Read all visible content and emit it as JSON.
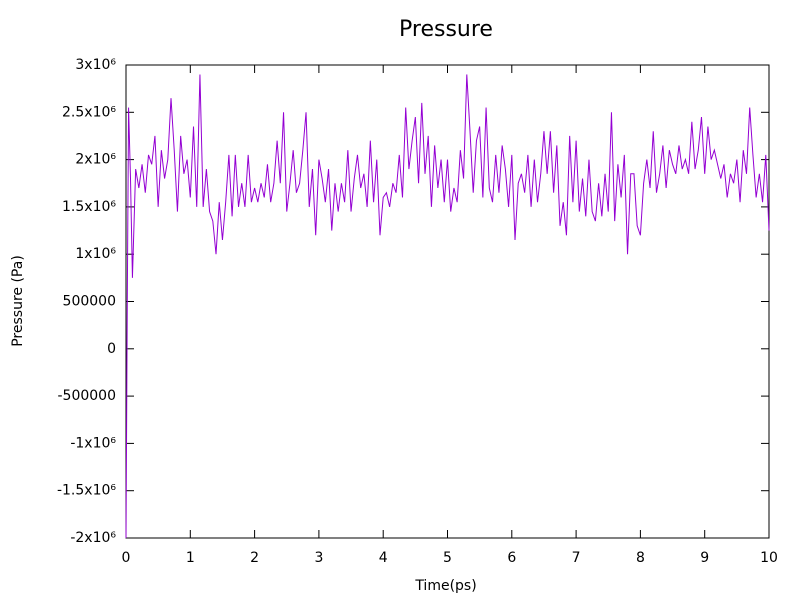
{
  "chart_data": {
    "type": "line",
    "title": "Pressure",
    "xlabel": "Time(ps)",
    "ylabel": "Pressure (Pa)",
    "color": "#9400d3",
    "x": [
      0,
      0.02,
      0.04,
      0.07,
      0.1,
      0.15,
      0.2,
      0.25,
      0.3,
      0.35,
      0.4,
      0.45,
      0.5,
      0.55,
      0.6,
      0.65,
      0.7,
      0.75,
      0.8,
      0.85,
      0.9,
      0.95,
      1.0,
      1.05,
      1.1,
      1.15,
      1.2,
      1.25,
      1.3,
      1.35,
      1.4,
      1.45,
      1.5,
      1.55,
      1.6,
      1.65,
      1.7,
      1.75,
      1.8,
      1.85,
      1.9,
      1.95,
      2.0,
      2.05,
      2.1,
      2.15,
      2.2,
      2.25,
      2.3,
      2.35,
      2.4,
      2.45,
      2.5,
      2.55,
      2.6,
      2.65,
      2.7,
      2.75,
      2.8,
      2.85,
      2.9,
      2.95,
      3.0,
      3.05,
      3.1,
      3.15,
      3.2,
      3.25,
      3.3,
      3.35,
      3.4,
      3.45,
      3.5,
      3.55,
      3.6,
      3.65,
      3.7,
      3.75,
      3.8,
      3.85,
      3.9,
      3.95,
      4.0,
      4.05,
      4.1,
      4.15,
      4.2,
      4.25,
      4.3,
      4.35,
      4.4,
      4.45,
      4.5,
      4.55,
      4.6,
      4.65,
      4.7,
      4.75,
      4.8,
      4.85,
      4.9,
      4.95,
      5.0,
      5.05,
      5.1,
      5.15,
      5.2,
      5.25,
      5.3,
      5.35,
      5.4,
      5.45,
      5.5,
      5.55,
      5.6,
      5.65,
      5.7,
      5.75,
      5.8,
      5.85,
      5.9,
      5.95,
      6.0,
      6.05,
      6.1,
      6.15,
      6.2,
      6.25,
      6.3,
      6.35,
      6.4,
      6.45,
      6.5,
      6.55,
      6.6,
      6.65,
      6.7,
      6.75,
      6.8,
      6.85,
      6.9,
      6.95,
      7.0,
      7.05,
      7.1,
      7.15,
      7.2,
      7.25,
      7.3,
      7.35,
      7.4,
      7.45,
      7.5,
      7.55,
      7.6,
      7.65,
      7.7,
      7.75,
      7.8,
      7.85,
      7.9,
      7.95,
      8.0,
      8.05,
      8.1,
      8.15,
      8.2,
      8.25,
      8.3,
      8.35,
      8.4,
      8.45,
      8.5,
      8.55,
      8.6,
      8.65,
      8.7,
      8.75,
      8.8,
      8.85,
      8.9,
      8.95,
      9.0,
      9.05,
      9.1,
      9.15,
      9.2,
      9.25,
      9.3,
      9.35,
      9.4,
      9.45,
      9.5,
      9.55,
      9.6,
      9.65,
      9.7,
      9.75,
      9.8,
      9.85,
      9.9,
      9.95,
      10.0
    ],
    "values": [
      -2000000.0,
      500000.0,
      2550000.0,
      1800000.0,
      750000.0,
      1900000.0,
      1700000.0,
      1950000.0,
      1650000.0,
      2050000.0,
      1950000.0,
      2250000.0,
      1500000.0,
      2100000.0,
      1800000.0,
      2000000.0,
      2650000.0,
      2100000.0,
      1450000.0,
      2250000.0,
      1850000.0,
      2000000.0,
      1600000.0,
      2350000.0,
      1500000.0,
      2900000.0,
      1500000.0,
      1900000.0,
      1450000.0,
      1350000.0,
      1000000.0,
      1550000.0,
      1150000.0,
      1550000.0,
      2050000.0,
      1400000.0,
      2050000.0,
      1500000.0,
      1750000.0,
      1500000.0,
      2050000.0,
      1550000.0,
      1700000.0,
      1550000.0,
      1750000.0,
      1600000.0,
      1950000.0,
      1550000.0,
      1750000.0,
      2200000.0,
      1750000.0,
      2500000.0,
      1450000.0,
      1750000.0,
      2100000.0,
      1650000.0,
      1750000.0,
      2100000.0,
      2500000.0,
      1500000.0,
      1900000.0,
      1200000.0,
      2000000.0,
      1800000.0,
      1550000.0,
      1900000.0,
      1250000.0,
      1750000.0,
      1450000.0,
      1750000.0,
      1550000.0,
      2100000.0,
      1450000.0,
      1800000.0,
      2050000.0,
      1700000.0,
      1850000.0,
      1500000.0,
      2200000.0,
      1550000.0,
      2000000.0,
      1200000.0,
      1600000.0,
      1650000.0,
      1500000.0,
      1750000.0,
      1650000.0,
      2050000.0,
      1600000.0,
      2550000.0,
      1900000.0,
      2200000.0,
      2450000.0,
      1750000.0,
      2600000.0,
      1850000.0,
      2250000.0,
      1500000.0,
      2150000.0,
      1700000.0,
      2000000.0,
      1550000.0,
      2000000.0,
      1450000.0,
      1700000.0,
      1550000.0,
      2100000.0,
      1800000.0,
      2900000.0,
      2300000.0,
      1650000.0,
      2200000.0,
      2350000.0,
      1600000.0,
      2550000.0,
      1700000.0,
      1550000.0,
      2050000.0,
      1650000.0,
      2150000.0,
      1900000.0,
      1500000.0,
      2050000.0,
      1150000.0,
      1750000.0,
      1850000.0,
      1650000.0,
      2050000.0,
      1500000.0,
      2000000.0,
      1550000.0,
      1850000.0,
      2300000.0,
      1850000.0,
      2300000.0,
      1650000.0,
      2150000.0,
      1300000.0,
      1550000.0,
      1200000.0,
      2250000.0,
      1550000.0,
      2200000.0,
      1450000.0,
      1800000.0,
      1400000.0,
      2000000.0,
      1450000.0,
      1350000.0,
      1750000.0,
      1400000.0,
      1850000.0,
      1450000.0,
      2500000.0,
      1350000.0,
      1950000.0,
      1600000.0,
      2050000.0,
      1000000.0,
      1850000.0,
      1850000.0,
      1300000.0,
      1200000.0,
      1750000.0,
      2000000.0,
      1700000.0,
      2300000.0,
      1650000.0,
      1850000.0,
      2150000.0,
      1700000.0,
      2100000.0,
      1950000.0,
      1850000.0,
      2150000.0,
      1900000.0,
      2000000.0,
      1850000.0,
      2400000.0,
      1900000.0,
      2100000.0,
      2450000.0,
      1850000.0,
      2350000.0,
      2000000.0,
      2100000.0,
      1950000.0,
      1800000.0,
      1950000.0,
      1600000.0,
      1850000.0,
      1750000.0,
      2000000.0,
      1550000.0,
      2100000.0,
      1850000.0,
      2550000.0,
      2050000.0,
      1600000.0,
      1850000.0,
      1550000.0,
      2050000.0,
      1250000.0
    ],
    "xlim": [
      0,
      10
    ],
    "xticks": [
      0,
      1,
      2,
      3,
      4,
      5,
      6,
      7,
      8,
      9,
      10
    ],
    "ylim": [
      -2000000,
      3000000
    ],
    "yticks": [
      {
        "value": -2000000,
        "label": "-2x10⁶"
      },
      {
        "value": -1500000,
        "label": "-1.5x10⁶"
      },
      {
        "value": -1000000,
        "label": "-1x10⁶"
      },
      -500000,
      0,
      500000,
      {
        "value": 1000000,
        "label": "1x10⁶"
      },
      {
        "value": 1500000,
        "label": "1.5x10⁶"
      },
      {
        "value": 2000000,
        "label": "2x10⁶"
      },
      {
        "value": 2500000,
        "label": "2.5x10⁶"
      },
      {
        "value": 3000000,
        "label": "3x10⁶"
      }
    ]
  }
}
